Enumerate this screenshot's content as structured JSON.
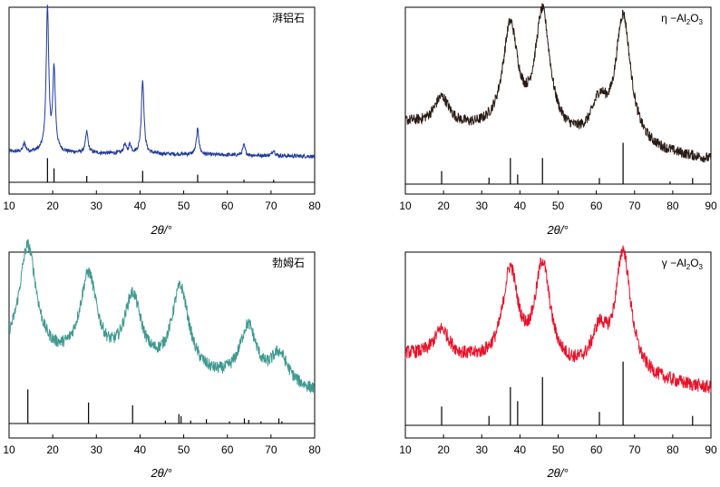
{
  "figure": {
    "xlabel": "2θ/°"
  },
  "chart_data": [
    {
      "type": "line",
      "title": "湃铝石",
      "xlabel": "2θ/°",
      "xlim": [
        10,
        80
      ],
      "xticks": [
        10,
        20,
        30,
        40,
        50,
        60,
        70,
        80
      ],
      "color": "#1f3a9c",
      "series": [
        {
          "values": [
            [
              10,
              0.08
            ],
            [
              13.5,
              0.1
            ],
            [
              18.8,
              1.0
            ],
            [
              20.3,
              0.6
            ],
            [
              27.8,
              0.18
            ],
            [
              36.5,
              0.1
            ],
            [
              37.7,
              0.1
            ],
            [
              40.6,
              0.52
            ],
            [
              53.2,
              0.2
            ],
            [
              63.8,
              0.1
            ],
            [
              70.6,
              0.07
            ],
            [
              80,
              0.05
            ]
          ]
        }
      ],
      "reference_lines": [
        [
          18.8,
          0.95
        ],
        [
          20.3,
          0.55
        ],
        [
          27.8,
          0.25
        ],
        [
          40.6,
          0.45
        ],
        [
          53.2,
          0.3
        ],
        [
          63.8,
          0.1
        ],
        [
          70.6,
          0.1
        ]
      ]
    },
    {
      "type": "line",
      "title": "η−Al2O3",
      "title_main": "η −Al",
      "title_sub1": "2",
      "title_mid": "O",
      "title_sub2": "3",
      "xlabel": "2θ/°",
      "xlim": [
        10,
        90
      ],
      "xticks": [
        10,
        20,
        30,
        40,
        50,
        60,
        70,
        80,
        90
      ],
      "color": "#2a1a14",
      "series": [
        {
          "values": [
            [
              10,
              0.3
            ],
            [
              19.5,
              0.35
            ],
            [
              37.5,
              0.85
            ],
            [
              45.9,
              0.95
            ],
            [
              60.8,
              0.35
            ],
            [
              67,
              0.95
            ],
            [
              90,
              0.05
            ]
          ]
        }
      ],
      "reference_lines": [
        [
          19.5,
          0.3
        ],
        [
          31.9,
          0.15
        ],
        [
          37.5,
          0.6
        ],
        [
          39.4,
          0.22
        ],
        [
          45.9,
          0.6
        ],
        [
          60.8,
          0.14
        ],
        [
          67,
          0.95
        ],
        [
          79.3,
          0.06
        ],
        [
          85.2,
          0.14
        ]
      ]
    },
    {
      "type": "line",
      "title": "勃姆石",
      "xlabel": "2θ/°",
      "xlim": [
        10,
        80
      ],
      "xticks": [
        10,
        20,
        30,
        40,
        50,
        60,
        70,
        80
      ],
      "color": "#3f9a90",
      "series": [
        {
          "values": [
            [
              10,
              0.35
            ],
            [
              14.3,
              0.95
            ],
            [
              28.2,
              0.78
            ],
            [
              38.3,
              0.65
            ],
            [
              49.2,
              0.72
            ],
            [
              64.8,
              0.5
            ],
            [
              71.8,
              0.32
            ],
            [
              80,
              0.12
            ]
          ]
        }
      ],
      "reference_lines": [
        [
          14.3,
          0.47
        ],
        [
          28.2,
          0.29
        ],
        [
          38.3,
          0.25
        ],
        [
          45.8,
          0.04
        ],
        [
          48.9,
          0.13
        ],
        [
          49.4,
          0.1
        ],
        [
          51.6,
          0.04
        ],
        [
          55.2,
          0.06
        ],
        [
          60.5,
          0.03
        ],
        [
          63.9,
          0.07
        ],
        [
          64.9,
          0.05
        ],
        [
          67.7,
          0.03
        ],
        [
          71.8,
          0.07
        ],
        [
          72.5,
          0.03
        ]
      ]
    },
    {
      "type": "line",
      "title": "γ−Al2O3",
      "title_main": "γ −Al",
      "title_sub1": "2",
      "title_mid": "O",
      "title_sub2": "3",
      "xlabel": "2θ/°",
      "xlim": [
        10,
        90
      ],
      "xticks": [
        10,
        20,
        30,
        40,
        50,
        60,
        70,
        80,
        90
      ],
      "color": "#e8122a",
      "series": [
        {
          "values": [
            [
              10,
              0.35
            ],
            [
              19.5,
              0.38
            ],
            [
              37.5,
              0.8
            ],
            [
              45.9,
              0.85
            ],
            [
              60.8,
              0.4
            ],
            [
              67,
              0.95
            ],
            [
              90,
              0.12
            ]
          ]
        }
      ],
      "reference_lines": [
        [
          19.5,
          0.28
        ],
        [
          31.9,
          0.14
        ],
        [
          37.5,
          0.57
        ],
        [
          39.4,
          0.36
        ],
        [
          45.9,
          0.72
        ],
        [
          60.8,
          0.2
        ],
        [
          67,
          0.95
        ],
        [
          85.2,
          0.14
        ]
      ]
    }
  ]
}
